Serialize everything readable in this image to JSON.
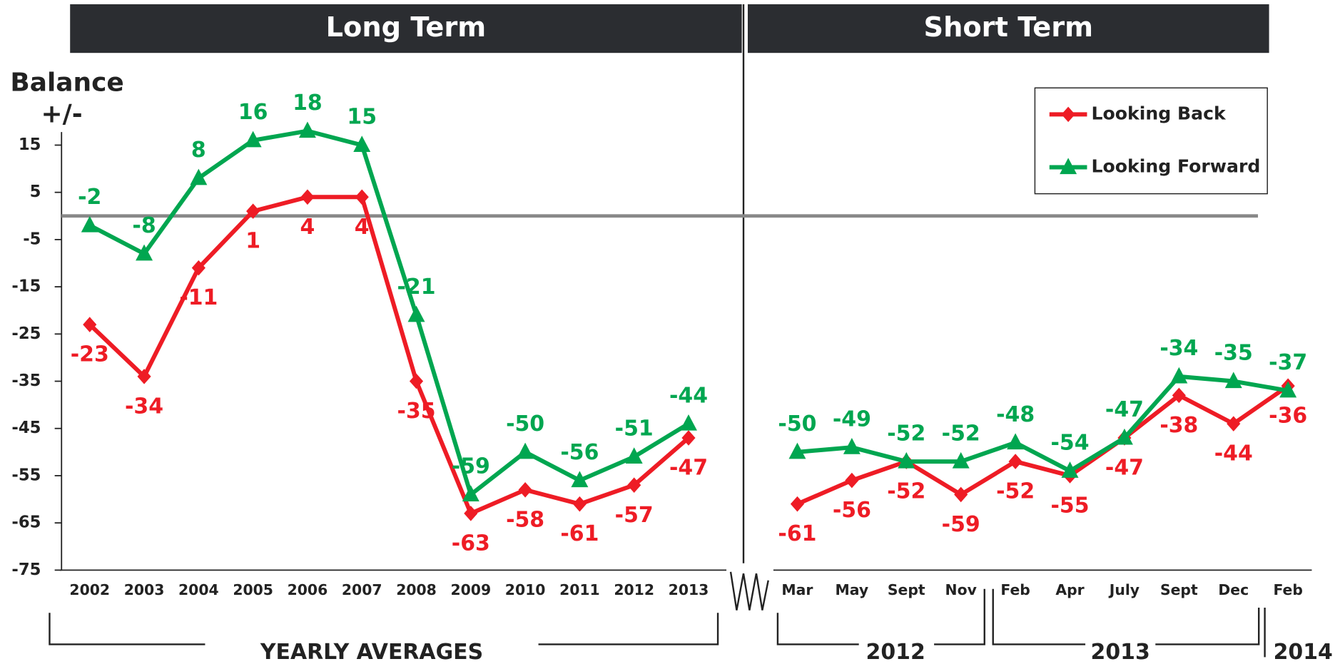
{
  "panels": [
    "Long Term",
    "Short Term"
  ],
  "groups": [
    "YEARLY AVERAGES",
    "2012",
    "2013",
    "2014"
  ],
  "chart_data": {
    "type": "line",
    "ylabel": [
      "Balance",
      "+/-"
    ],
    "categories": [
      "2002",
      "2003",
      "2004",
      "2005",
      "2006",
      "2007",
      "2008",
      "2009",
      "2010",
      "2011",
      "2012",
      "2013",
      "Mar",
      "May",
      "Sept",
      "Nov",
      "Feb",
      "Apr",
      "July",
      "Sept",
      "Dec",
      "Feb"
    ],
    "series": [
      {
        "name": "Looking Back",
        "color": "#ee1c25",
        "marker": "diamond",
        "values": [
          -23,
          -34,
          -11,
          1,
          4,
          4,
          -35,
          -63,
          -58,
          -61,
          -57,
          -47,
          -61,
          -56,
          -52,
          -59,
          -52,
          -55,
          -47,
          -38,
          -44,
          -36
        ]
      },
      {
        "name": "Looking Forward",
        "color": "#00a650",
        "marker": "triangle",
        "values": [
          -2,
          -8,
          8,
          16,
          18,
          15,
          -21,
          -59,
          -50,
          -56,
          -51,
          -44,
          -50,
          -49,
          -52,
          -52,
          -48,
          -54,
          -47,
          -34,
          -35,
          -37
        ]
      }
    ],
    "ylim": [
      -75,
      25
    ],
    "yticks": [
      15,
      5,
      -5,
      -15,
      -25,
      -35,
      -45,
      -55,
      -65,
      -75
    ],
    "zero_line": 0,
    "legend": "upper right"
  }
}
